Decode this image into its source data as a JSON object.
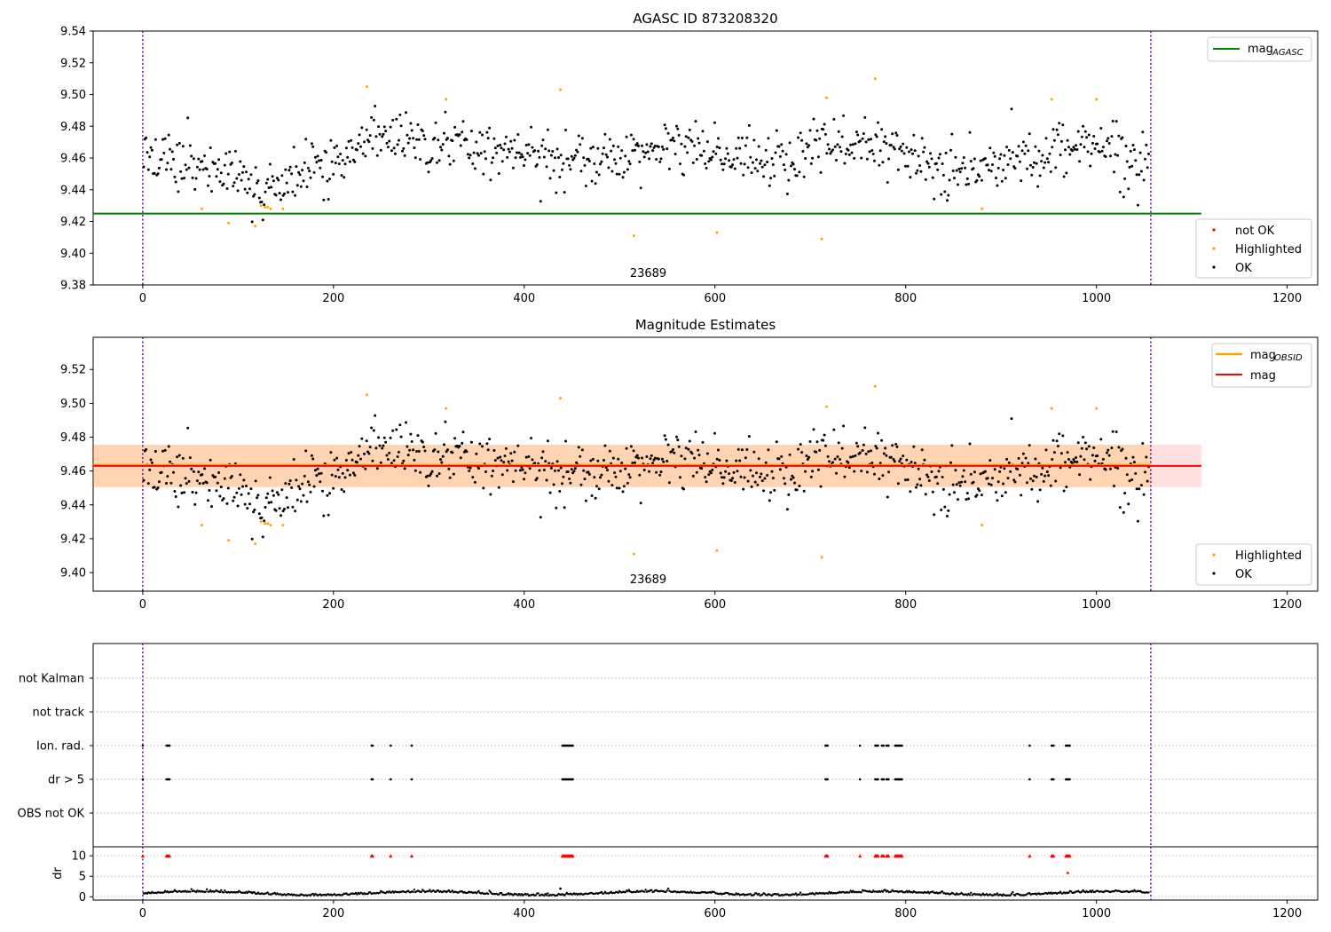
{
  "chart_data": [
    {
      "type": "scatter",
      "panel": "agasc",
      "title": "AGASC ID 873208320",
      "xlim": [
        -52,
        1232
      ],
      "ylim": [
        9.38,
        9.54
      ],
      "xticks": [
        0,
        200,
        400,
        600,
        800,
        1000,
        1200
      ],
      "yticks": [
        9.38,
        9.4,
        9.42,
        9.44,
        9.46,
        9.48,
        9.5,
        9.52,
        9.54
      ],
      "xtick_labels": [
        "0",
        "200",
        "400",
        "600",
        "800",
        "1000",
        "1200"
      ],
      "ytick_labels": [
        "9.38",
        "9.40",
        "9.42",
        "9.44",
        "9.46",
        "9.48",
        "9.50",
        "9.52",
        "9.54"
      ],
      "obsid_label": "23689",
      "obsid_label_x": 530,
      "obsid_boundaries": [
        0,
        1057
      ],
      "line_end_x": 1110,
      "mag_agasc": 9.425,
      "legend_lines": [
        {
          "label": "mag",
          "sub": "AGASC",
          "color": "#008000"
        }
      ],
      "legend_points": [
        {
          "label": "not OK",
          "color": "#ff0000"
        },
        {
          "label": "Highlighted",
          "color": "#ffa500"
        },
        {
          "label": "OK",
          "color": "#000000"
        }
      ],
      "highlighted_points": [
        [
          62,
          9.428
        ],
        [
          90,
          9.419
        ],
        [
          118,
          9.417
        ],
        [
          124,
          9.43
        ],
        [
          128,
          9.429
        ],
        [
          131,
          9.429
        ],
        [
          134,
          9.428
        ],
        [
          147,
          9.428
        ],
        [
          235,
          9.505
        ],
        [
          318,
          9.497
        ],
        [
          438,
          9.503
        ],
        [
          515,
          9.411
        ],
        [
          602,
          9.413
        ],
        [
          712,
          9.409
        ],
        [
          717,
          9.498
        ],
        [
          768,
          9.51
        ],
        [
          880,
          9.428
        ],
        [
          953,
          9.497
        ],
        [
          1000,
          9.497
        ]
      ]
    },
    {
      "type": "scatter",
      "panel": "estimates",
      "title": "Magnitude Estimates",
      "xlim": [
        -52,
        1232
      ],
      "ylim": [
        9.389,
        9.539
      ],
      "xticks": [
        0,
        200,
        400,
        600,
        800,
        1000,
        1200
      ],
      "yticks": [
        9.4,
        9.42,
        9.44,
        9.46,
        9.48,
        9.5,
        9.52
      ],
      "xtick_labels": [
        "0",
        "200",
        "400",
        "600",
        "800",
        "1000",
        "1200"
      ],
      "ytick_labels": [
        "9.40",
        "9.42",
        "9.44",
        "9.46",
        "9.48",
        "9.50",
        "9.52"
      ],
      "obsid_label": "23689",
      "obsid_label_x": 530,
      "obsid_boundaries": [
        0,
        1057
      ],
      "line_end_x": 1110,
      "mag": 9.463,
      "mag_obsid": 9.4635,
      "mag_band": [
        9.4505,
        9.4755
      ],
      "mag_obsid_band": [
        9.4505,
        9.4755
      ],
      "legend_lines": [
        {
          "label": "mag",
          "sub": "OBSID",
          "color": "#ffa500"
        },
        {
          "label": "mag",
          "sub": "",
          "color": "#ff0000"
        }
      ],
      "legend_points": [
        {
          "label": "Highlighted",
          "color": "#ffa500"
        },
        {
          "label": "OK",
          "color": "#000000"
        }
      ],
      "highlighted_points": [
        [
          62,
          9.428
        ],
        [
          90,
          9.419
        ],
        [
          118,
          9.417
        ],
        [
          124,
          9.43
        ],
        [
          128,
          9.429
        ],
        [
          131,
          9.429
        ],
        [
          134,
          9.428
        ],
        [
          147,
          9.428
        ],
        [
          235,
          9.505
        ],
        [
          318,
          9.497
        ],
        [
          438,
          9.503
        ],
        [
          515,
          9.411
        ],
        [
          602,
          9.413
        ],
        [
          712,
          9.409
        ],
        [
          717,
          9.498
        ],
        [
          768,
          9.51
        ],
        [
          880,
          9.428
        ],
        [
          953,
          9.497
        ],
        [
          1000,
          9.497
        ]
      ]
    },
    {
      "type": "scatter",
      "panel": "flags",
      "xlim": [
        -52,
        1232
      ],
      "categories": [
        "not Kalman",
        "not track",
        "Ion. rad.",
        "dr > 5",
        "OBS not OK"
      ],
      "flag_times": [
        0,
        25,
        26,
        27,
        28,
        240,
        241,
        260,
        282,
        440,
        441,
        442,
        443,
        444,
        445,
        446,
        447,
        448,
        449,
        450,
        451,
        716,
        717,
        718,
        752,
        768,
        769,
        770,
        771,
        775,
        776,
        777,
        780,
        781,
        782,
        789,
        790,
        791,
        792,
        793,
        794,
        795,
        796,
        930,
        953,
        954,
        955,
        968,
        969,
        970,
        971,
        972
      ],
      "flag_rows": [
        "Ion. rad.",
        "dr > 5"
      ]
    },
    {
      "type": "scatter",
      "panel": "dr",
      "xlim": [
        -52,
        1232
      ],
      "ylim": [
        -0.8,
        12.2
      ],
      "ylabel": "dr",
      "xticks": [
        0,
        200,
        400,
        600,
        800,
        1000,
        1200
      ],
      "yticks": [
        0,
        5,
        10
      ],
      "xtick_labels": [
        "0",
        "200",
        "400",
        "600",
        "800",
        "1000",
        "1200"
      ],
      "ytick_labels": [
        "0",
        "5",
        "10"
      ],
      "obsid_boundaries": [
        0,
        1057
      ],
      "clip_value": 10,
      "extra_points": [
        [
          970,
          5.8
        ],
        [
          438,
          2.0
        ]
      ]
    }
  ]
}
